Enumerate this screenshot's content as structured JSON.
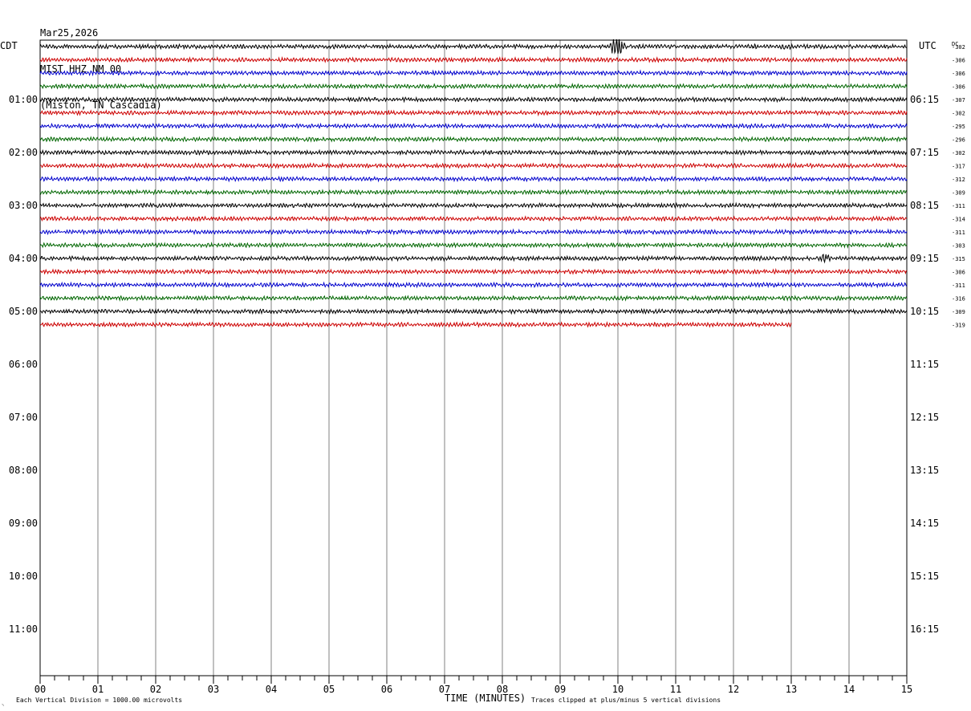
{
  "header": {
    "date": "Mar25,2026",
    "station": "MIST HHZ NM 00",
    "location": "(Miston, TN Cascadia)"
  },
  "labels": {
    "left_tz": "CDT",
    "right_tz": "UTC",
    "dc": "DC",
    "xlabel": "TIME (MINUTES)",
    "scale_note": "Each Vertical Division = 1000.00 microvolts",
    "clip_note": "Traces clipped at plus/minus 5 vertical divisions"
  },
  "chart_data": {
    "type": "line",
    "title": "MIST HHZ NM 00",
    "xlabel": "TIME (MINUTES)",
    "xlim": [
      0,
      15
    ],
    "x_ticks": [
      "00",
      "01",
      "02",
      "03",
      "04",
      "05",
      "06",
      "07",
      "08",
      "09",
      "10",
      "11",
      "12",
      "13",
      "14",
      "15"
    ],
    "left_hour_labels": [
      "01:00",
      "02:00",
      "03:00",
      "04:00",
      "05:00",
      "06:00",
      "07:00",
      "08:00",
      "09:00",
      "10:00",
      "11:00"
    ],
    "right_hour_labels": [
      "06:15",
      "07:15",
      "08:15",
      "09:15",
      "10:15",
      "11:15",
      "12:15",
      "13:15",
      "14:15",
      "15:15",
      "16:15"
    ],
    "line_colors": [
      "#000000",
      "#cc0000",
      "#0000cc",
      "#006600"
    ],
    "dc_offsets": [
      "-302",
      "-306",
      "-306",
      "-306",
      "-307",
      "-302",
      "-295",
      "-296",
      "-302",
      "-317",
      "-312",
      "-309",
      "-311",
      "-314",
      "-311",
      "-303",
      "-315",
      "-306",
      "-311",
      "-316",
      "-309",
      "-319"
    ],
    "trace_count": 22,
    "last_trace_end_minute": 13,
    "events": [
      {
        "trace": 0,
        "start_min": 9.85,
        "end_min": 10.35,
        "amplitude": 3.0
      },
      {
        "trace": 0,
        "start_min": 12.35,
        "end_min": 12.5,
        "amplitude": 1.3
      },
      {
        "trace": 0,
        "start_min": 12.75,
        "end_min": 13.2,
        "amplitude": 1.2
      },
      {
        "trace": 0,
        "start_min": 13.35,
        "end_min": 13.7,
        "amplitude": 1.1
      },
      {
        "trace": 16,
        "start_min": 13.5,
        "end_min": 13.8,
        "amplitude": 1.6
      },
      {
        "trace": 11,
        "start_min": 10.85,
        "end_min": 10.95,
        "amplitude": 1.3
      },
      {
        "trace": 15,
        "start_min": 10.9,
        "end_min": 11.0,
        "amplitude": 1.2
      }
    ]
  }
}
